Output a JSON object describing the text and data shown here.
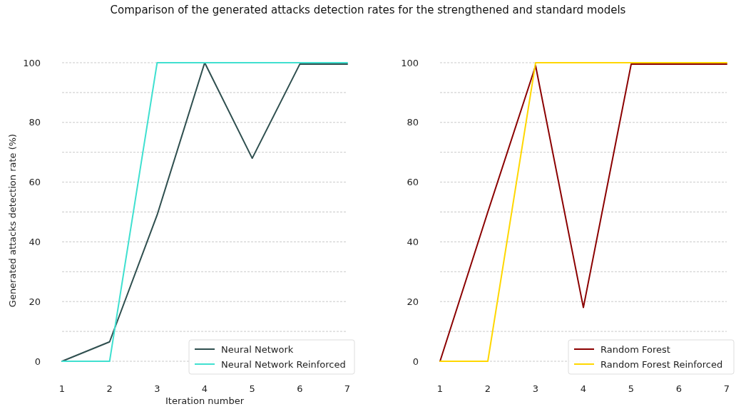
{
  "chart_data": [
    {
      "type": "line",
      "title": "Comparison of the generated attacks detection rates for the strengthened and standard models",
      "xlabel": "Iteration number",
      "ylabel": "Generated attacks detection rate (%)",
      "x": [
        1,
        2,
        3,
        4,
        5,
        6,
        7
      ],
      "xlim": [
        1,
        7
      ],
      "xticks": [
        1,
        2,
        3,
        4,
        5,
        6,
        7
      ],
      "ylim": [
        0,
        100
      ],
      "yticks": [
        0,
        {
          "value": 10,
          "label": null
        },
        20,
        {
          "value": 30,
          "label": null
        },
        40,
        {
          "value": 50,
          "label": null
        },
        60,
        {
          "value": 70,
          "label": null
        },
        80,
        {
          "value": 90,
          "label": null
        },
        100
      ],
      "grid": "y",
      "legend": "bottom right",
      "series": [
        {
          "name": "Neural Network",
          "color": "#2f4f4f",
          "values": [
            0,
            6.5,
            49,
            100,
            68,
            99.5,
            99.5
          ]
        },
        {
          "name": "Neural Network Reinforced",
          "color": "#40e0d0",
          "values": [
            0,
            0,
            100,
            100,
            100,
            100,
            100
          ]
        }
      ]
    },
    {
      "type": "line",
      "x": [
        1,
        2,
        3,
        4,
        5,
        6,
        7
      ],
      "xlim": [
        1,
        7
      ],
      "xticks": [
        1,
        2,
        3,
        4,
        5,
        6,
        7
      ],
      "ylim": [
        0,
        100
      ],
      "yticks": [
        0,
        {
          "value": 10,
          "label": null
        },
        20,
        {
          "value": 30,
          "label": null
        },
        40,
        {
          "value": 50,
          "label": null
        },
        60,
        {
          "value": 70,
          "label": null
        },
        80,
        {
          "value": 90,
          "label": null
        },
        100
      ],
      "grid": "y",
      "legend": "bottom right",
      "series": [
        {
          "name": "Random Forest",
          "color": "#8b0000",
          "values": [
            0,
            50,
            99,
            18,
            99.5,
            99.5,
            99.5
          ]
        },
        {
          "name": "Random Forest Reinforced",
          "color": "#ffd700",
          "values": [
            0,
            0,
            100,
            100,
            100,
            100,
            100
          ]
        }
      ]
    }
  ]
}
